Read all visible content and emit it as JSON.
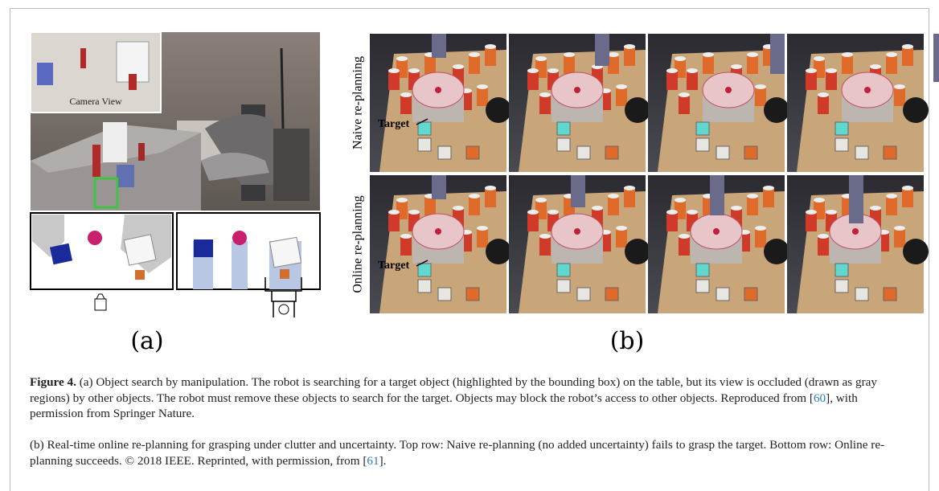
{
  "panel_a": {
    "inset_label": "Camera View",
    "label": "(a)"
  },
  "panel_b": {
    "rows": [
      {
        "label": "Naive re-planning",
        "target": "Target"
      },
      {
        "label": "Online re-planning",
        "target": "Target"
      }
    ],
    "label": "(b)"
  },
  "caption": {
    "label": "Figure 4.",
    "a_text": " (a) Object search by manipulation. The robot is searching for a target object (highlighted by the bounding box) on the table, but its view is occluded (drawn as gray regions) by other objects. The robot must remove these objects to search for the target. Objects may block the robot’s access to other objects. Reproduced from [",
    "a_cite": "60",
    "a_end": "], with permission from Springer Nature.",
    "b_text": "(b) Real-time online re-planning for grasping under clutter and uncertainty. Top row: Naive re-planning (no added uncertainty) fails to grasp the target. Bottom row: Online re-planning succeeds. © 2018 IEEE. Reprinted, with permission, from [",
    "b_cite": "61",
    "b_end": "]."
  }
}
